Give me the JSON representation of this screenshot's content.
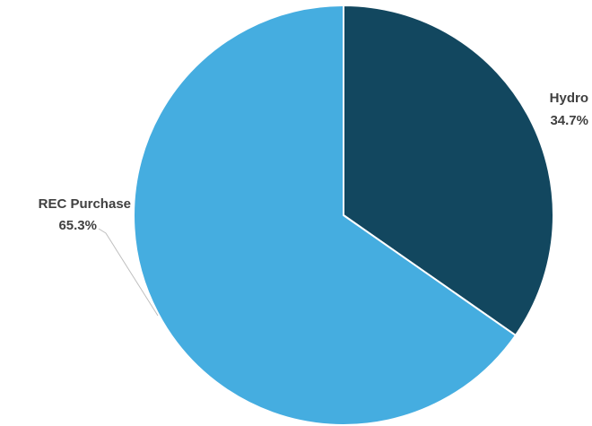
{
  "chart_data": {
    "type": "pie",
    "title": "",
    "slices": [
      {
        "label": "Hydro",
        "value": 34.7,
        "value_label": "34.7%",
        "color": "#12475f"
      },
      {
        "label": "REC Purchase",
        "value": 65.3,
        "value_label": "65.3%",
        "color": "#45ade0"
      }
    ],
    "start": "12 o'clock",
    "direction": "clockwise",
    "slice_border_color": "#ffffff",
    "leader_line_color": "#bfbfbf"
  }
}
